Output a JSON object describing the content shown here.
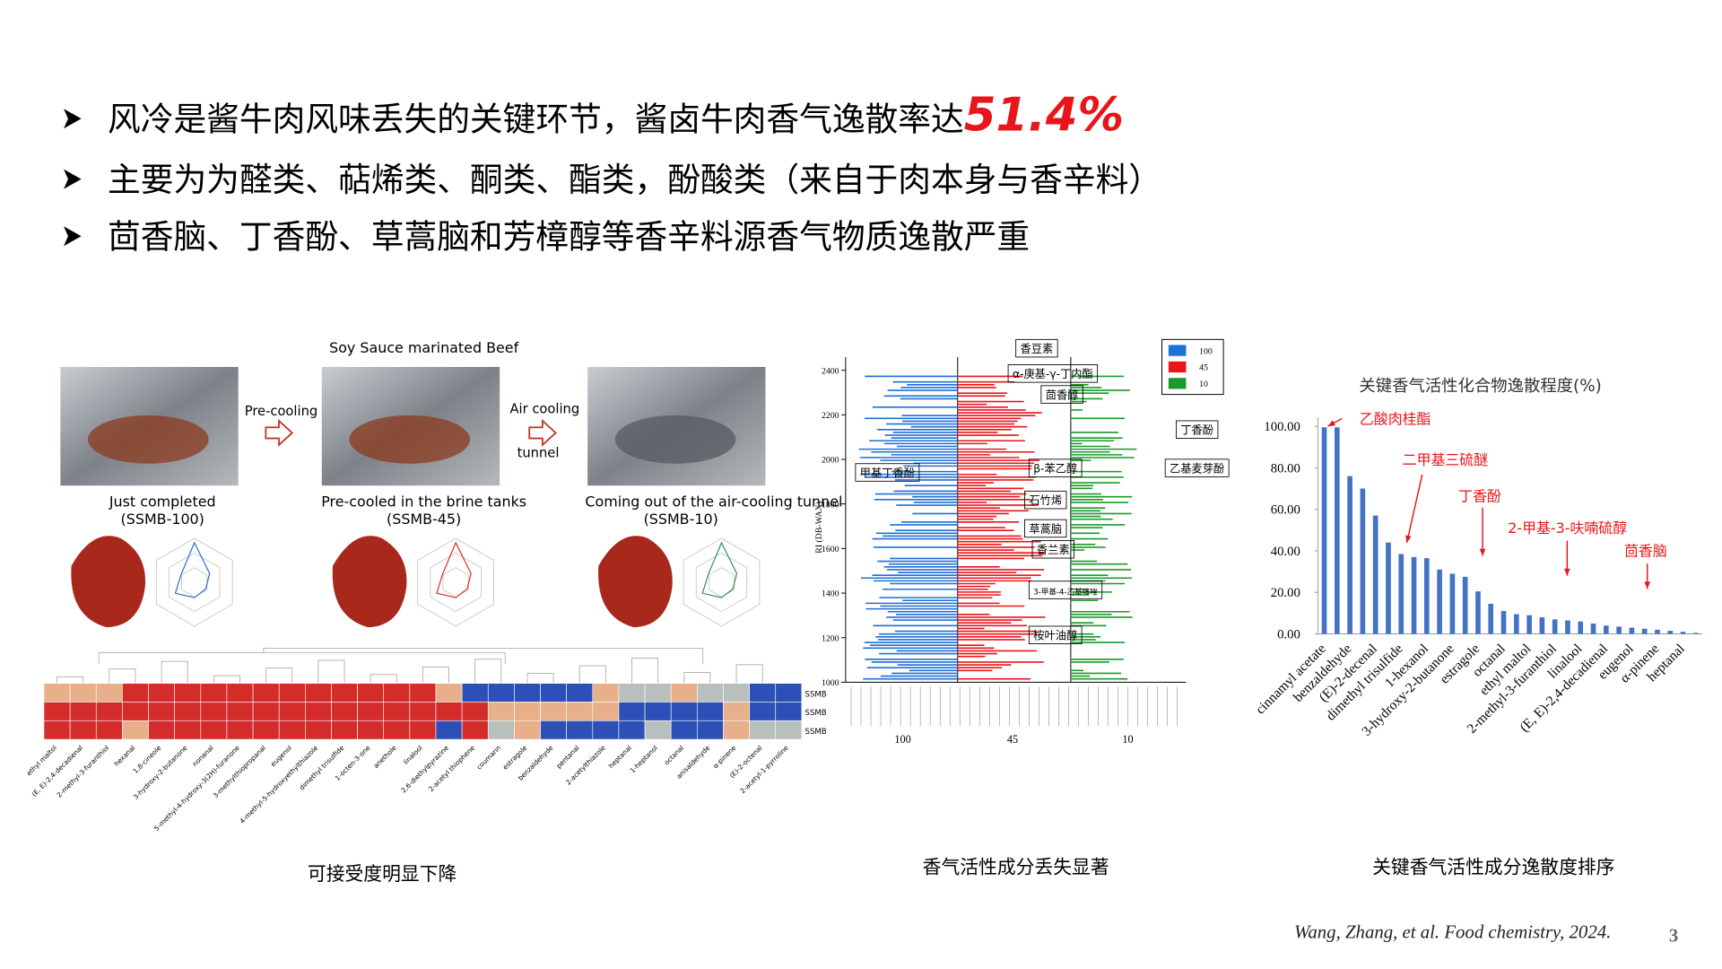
{
  "bullets": [
    {
      "text": "风冷是酱牛肉风味丢失的关键环节，酱卤牛肉香气逸散率达",
      "highlight": "51.4%"
    },
    {
      "text": "主要为为醛类、萜烯类、酮类、酯类，酚酸类（来自于肉本身与香辛料）"
    },
    {
      "text": "茴香脑、丁香酚、草蒿脑和芳樟醇等香辛料源香气物质逸散严重"
    }
  ],
  "process": {
    "title": "Soy Sauce marinated Beef",
    "arrows": [
      [
        "Pre-cooling"
      ],
      [
        "Air cooling",
        "tunnel"
      ]
    ],
    "steps": [
      {
        "label": "Just completed",
        "code": "(SSMB-100)"
      },
      {
        "label": "Pre-cooled in the brine tanks",
        "code": "(SSMB-45)"
      },
      {
        "label": "Coming out of the air-cooling tunnel",
        "code": "(SSMB-10)"
      }
    ]
  },
  "heatmap": {
    "rows": [
      "SSMB",
      "SSMB",
      "SSMB"
    ],
    "columns": [
      "ethyl maltol",
      "(E, E)-2,4-decadienal",
      "2-methyl-3-furanthiol",
      "hexanal",
      "1,8-cineole",
      "3-hydroxy-2-butanone",
      "nonanal",
      "5-methyl-4-hydroxy-3(2H)-furanone",
      "3-methylthiopropanal",
      "eugenol",
      "4-methyl-5-hydroxyethylthiazole",
      "dimethyl trisulfide",
      "1-octen-3-one",
      "anethole",
      "linalool",
      "2,6-diethylpyrazine",
      "2-acetyl thiophene",
      "coumarin",
      "estragole",
      "benzaldehyde",
      "pentanal",
      "2-acetylthiazole",
      "heptanal",
      "1-heptanol",
      "octanal",
      "anisaldehyde",
      "α-pinene",
      "(E)-2-octenal",
      "2-acetyl-1-pyrroline"
    ]
  },
  "ri_chart": {
    "y_label": "RI (DB-WAX)",
    "ylim": [
      1000,
      2400
    ],
    "yticks": [
      1000,
      1200,
      1400,
      1600,
      1800,
      2000,
      2200,
      2400
    ],
    "legend": [
      {
        "name": "100",
        "color": "#1f6fd6"
      },
      {
        "name": "45",
        "color": "#e8151b"
      },
      {
        "name": "10",
        "color": "#1a9a2a"
      }
    ],
    "group_labels": [
      "100",
      "45",
      "10"
    ],
    "compounds": [
      "香豆素",
      "α-庚基-γ-丁内酯",
      "茴香醇",
      "丁香酚",
      "甲基丁香酚",
      "乙基麦芽酚",
      "β-苯乙醇",
      "石竹烯",
      "草蒿脑",
      "香兰素",
      "3-甲基-4-乙基噻唑",
      "桉叶油醇"
    ]
  },
  "captions": [
    "可接受度明显下降",
    "香气活性成分丢失显著",
    "关键香气活性成分逸散度排序"
  ],
  "chart_data": {
    "type": "bar",
    "title": "关键香气活性化合物逸散程度(%)",
    "categories": [
      "cinnamyl acetate",
      null,
      "benzaldehyde",
      null,
      "(E)-2-decenal",
      null,
      "dimethyl trisulfide",
      null,
      "1-hexanol",
      null,
      "3-hydroxy-2-butanone",
      null,
      "estragole",
      null,
      "octanal",
      null,
      "ethyl maltol",
      null,
      "2-methyl-3-furanthiol",
      null,
      "linalool",
      null,
      "(E, E)-2,4-decadienal",
      null,
      "eugenol",
      null,
      "α-pinene",
      null,
      "heptanal",
      null
    ],
    "values": [
      99.5,
      99.5,
      76,
      70,
      57,
      44,
      38.5,
      37,
      36.5,
      31,
      29,
      27.5,
      20.5,
      14.5,
      11,
      9.5,
      9,
      8,
      7,
      6.5,
      6,
      5,
      4,
      3.5,
      3,
      2.5,
      2,
      1.5,
      1,
      0.5
    ],
    "color": "#4472c4",
    "ylim": [
      0,
      100
    ],
    "yticks": [
      {
        "value": 0,
        "label": "0.00"
      },
      {
        "value": 20,
        "label": "20.00"
      },
      {
        "value": 40,
        "label": "40.00"
      },
      {
        "value": 60,
        "label": "60.00"
      },
      {
        "value": 80,
        "label": "80.00"
      },
      {
        "value": 100,
        "label": "100.00"
      }
    ],
    "annotations": [
      "乙酸肉桂酯",
      "二甲基三硫醚",
      "丁香酚",
      "2-甲基-3-呋喃硫醇",
      "茴香脑"
    ],
    "annotation_color": "#e8151b"
  },
  "citation": "Wang, Zhang, et al. Food chemistry, 2024.",
  "page_number": "3"
}
